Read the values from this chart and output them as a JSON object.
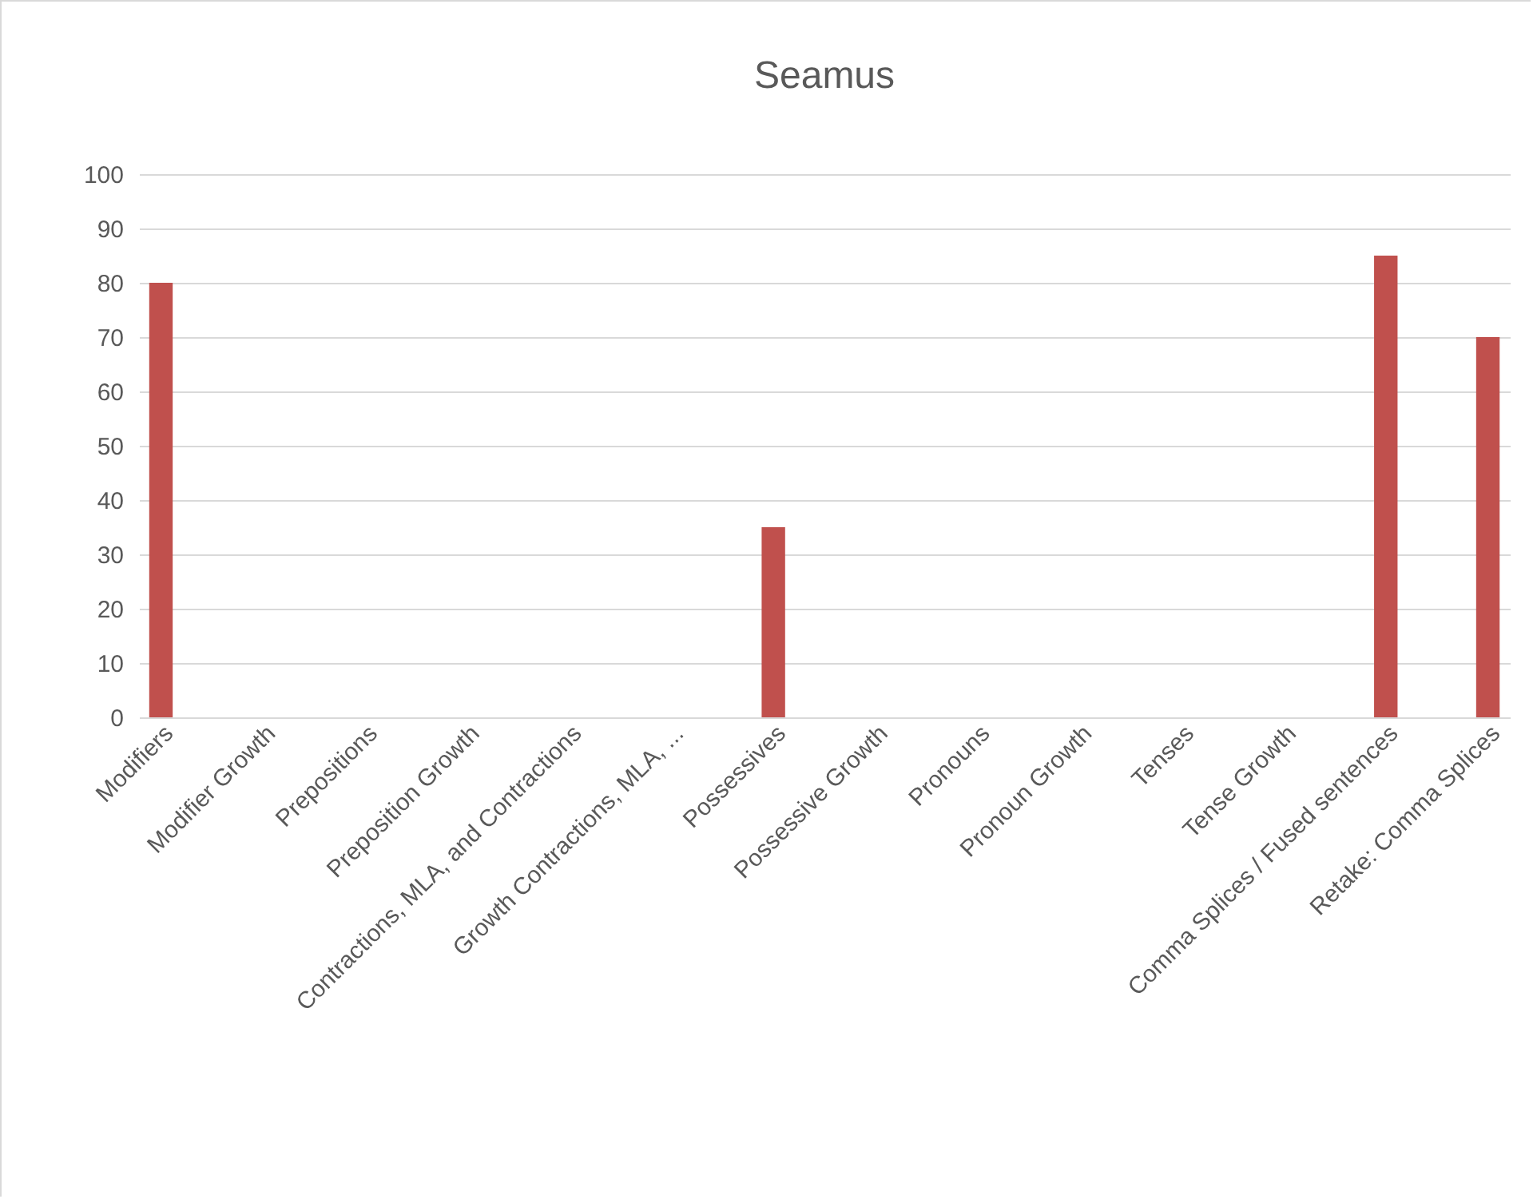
{
  "chart_data": {
    "type": "bar",
    "title": "Seamus",
    "categories": [
      "Modifiers",
      "Modifier Growth",
      "Prepositions",
      "Preposition Growth",
      "Contractions, MLA, and Contractions",
      "Growth Contractions, MLA, ...",
      "Possessives",
      "Possessive Growth",
      "Pronouns",
      "Pronoun Growth",
      "Tenses",
      "Tense Growth",
      "Comma Splices / Fused sentences",
      "Retake: Comma Splices"
    ],
    "values": [
      80,
      null,
      null,
      null,
      null,
      null,
      35,
      null,
      null,
      null,
      null,
      null,
      85,
      70
    ],
    "color": "#c0504d",
    "ylim": [
      0,
      100
    ],
    "yticks": [
      0,
      10,
      20,
      30,
      40,
      50,
      60,
      70,
      80,
      90,
      100
    ],
    "grid": "y"
  }
}
